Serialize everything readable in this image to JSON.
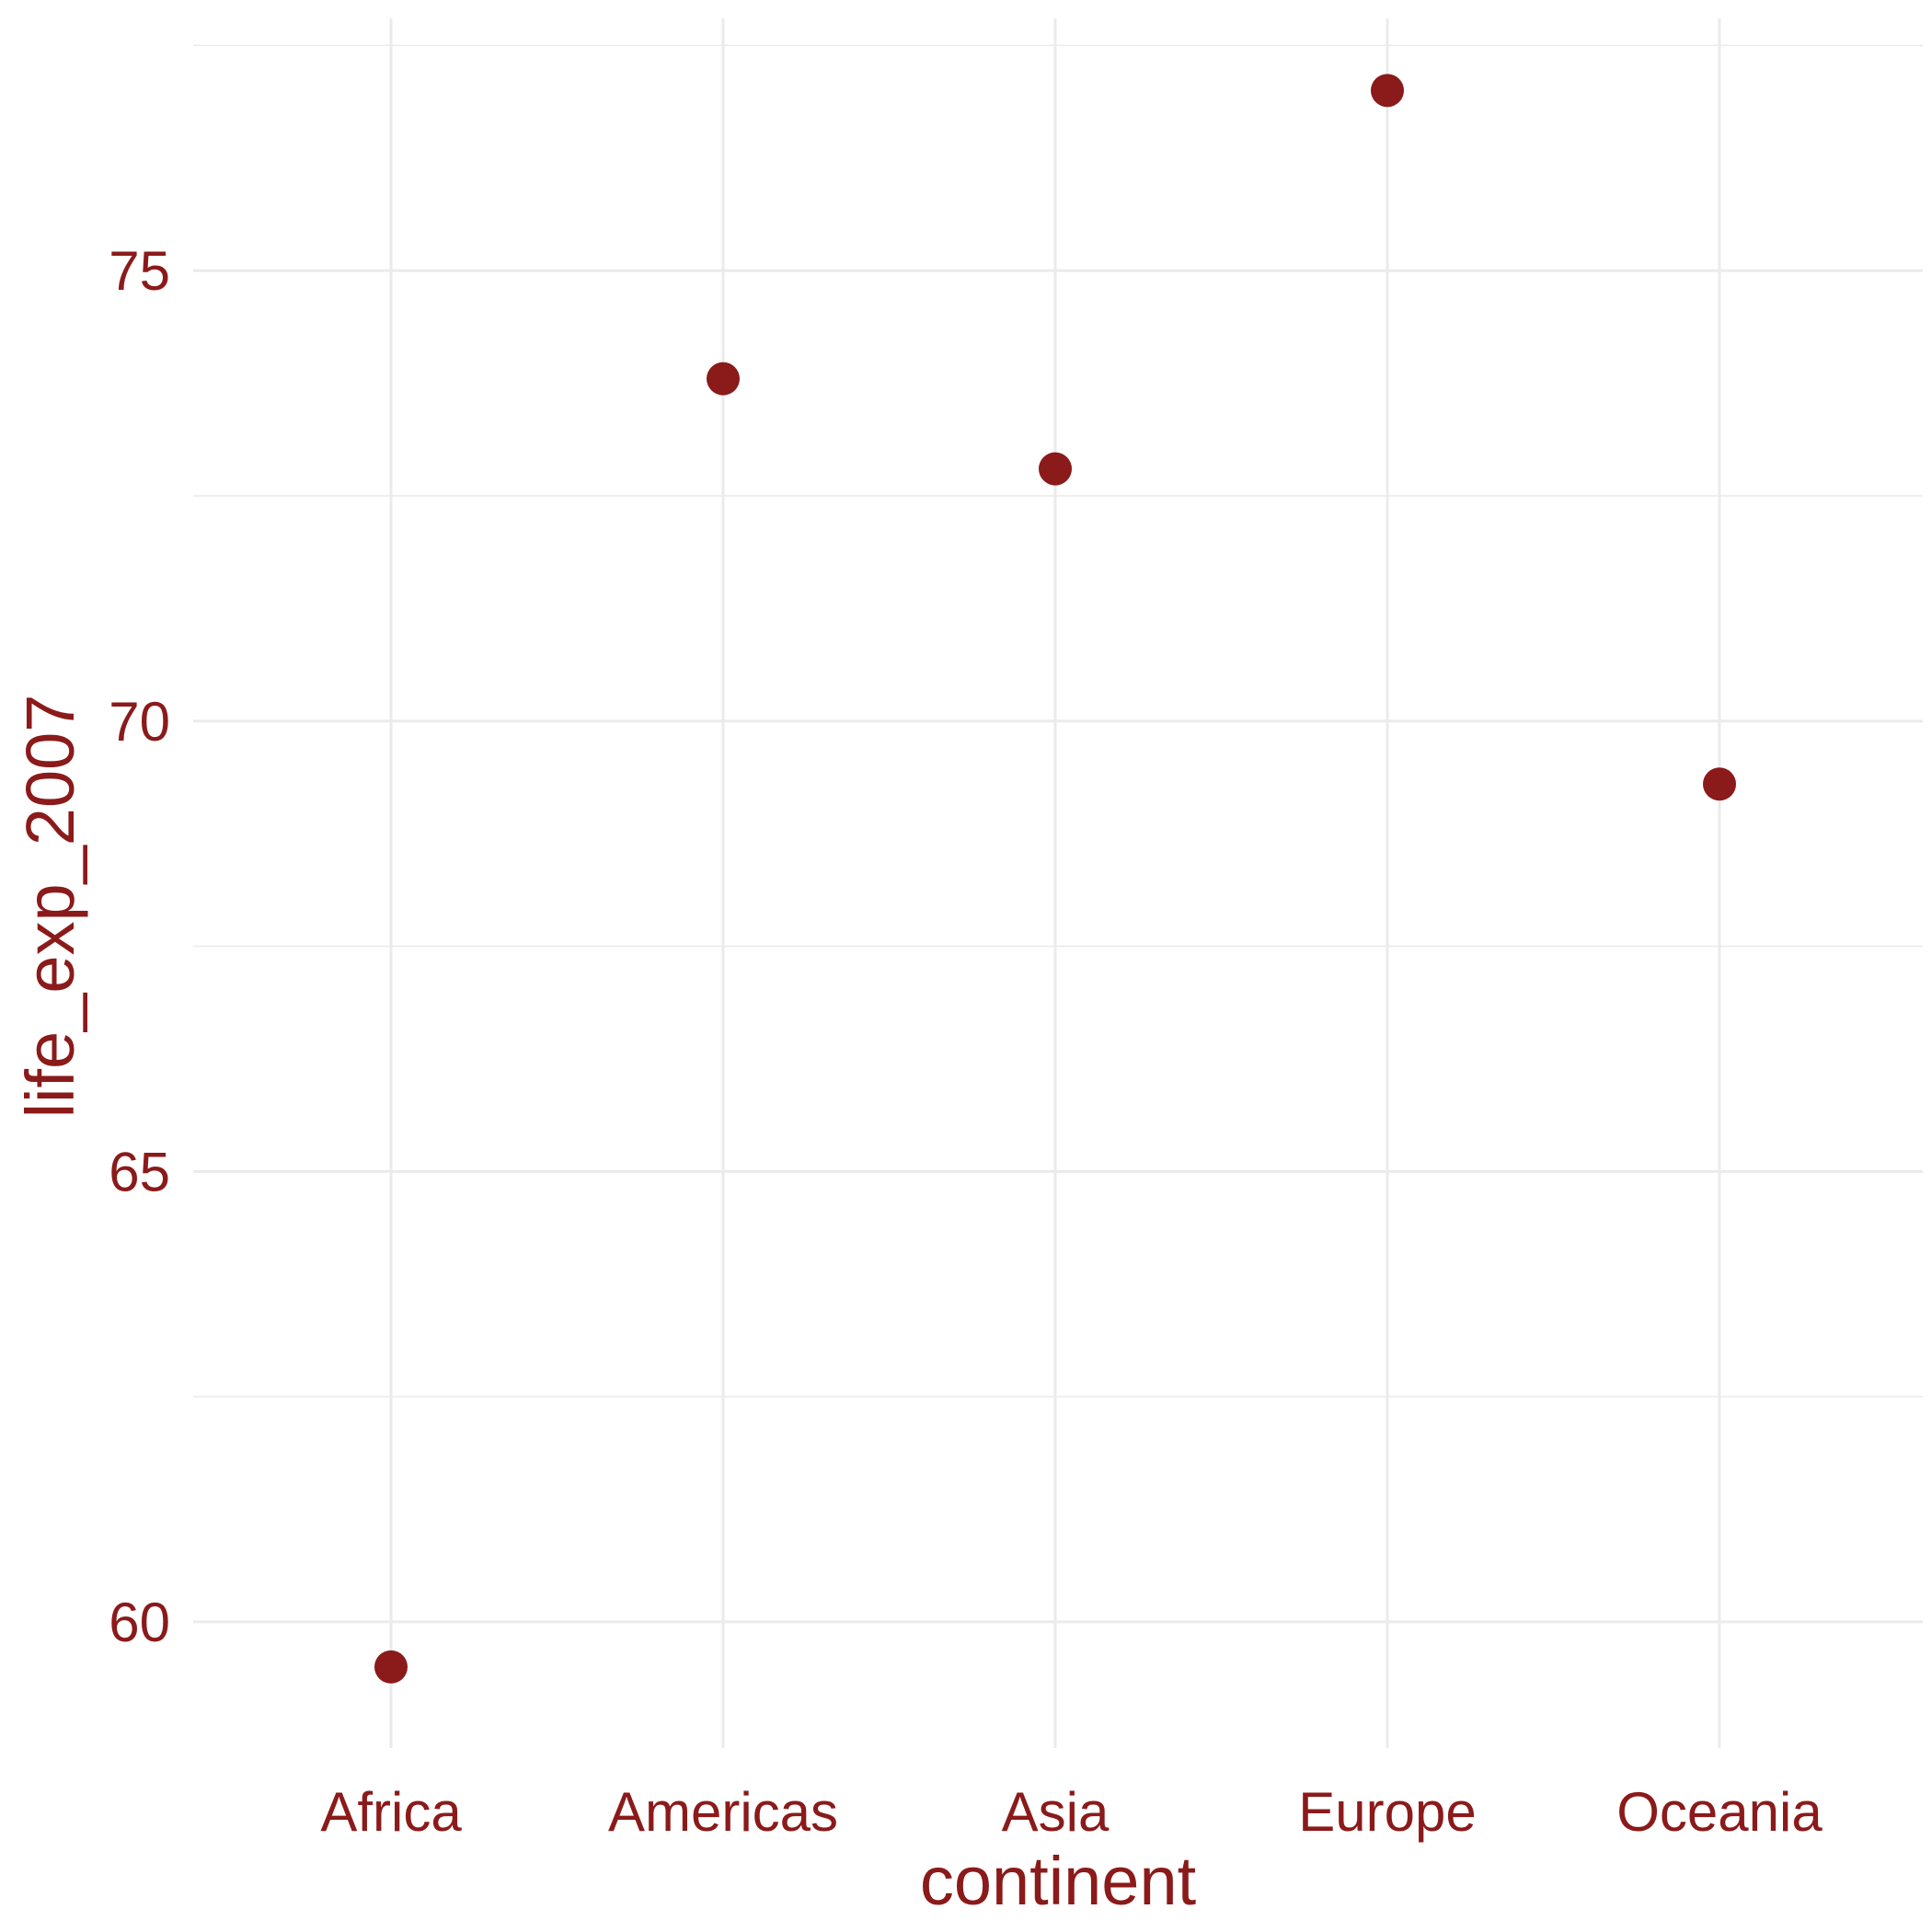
{
  "chart_data": {
    "type": "scatter",
    "xlabel": "continent",
    "ylabel": "life_exp_2007",
    "categories": [
      "Africa",
      "Americas",
      "Asia",
      "Europe",
      "Oceania"
    ],
    "values": [
      59.5,
      73.8,
      72.8,
      77.0,
      69.3
    ],
    "ylim": [
      58.6,
      77.8
    ],
    "yticks": [
      "60",
      "65",
      "70",
      "75"
    ],
    "ytick_values": [
      60,
      65,
      70,
      75
    ],
    "yminor_values": [
      62.5,
      67.5,
      72.5,
      77.5
    ],
    "grid": true,
    "legend": "none",
    "point_color": "#8b1a1a",
    "text_color": "#8b1a1a",
    "grid_color": "#ebebeb"
  }
}
